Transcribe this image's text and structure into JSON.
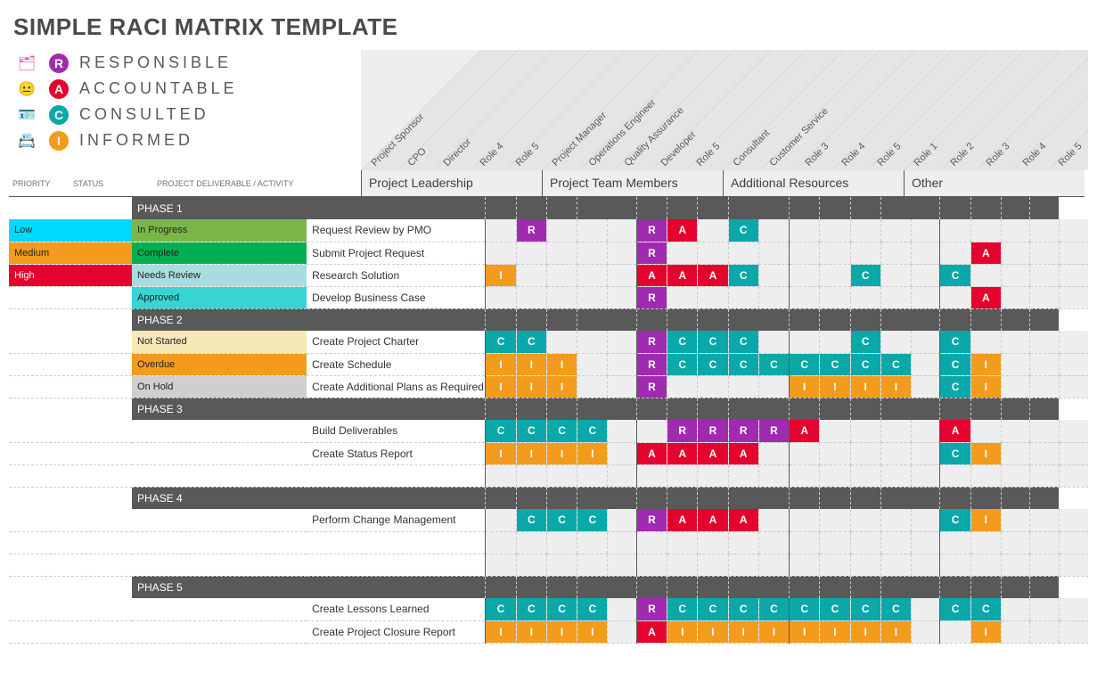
{
  "title": "SIMPLE RACI MATRIX TEMPLATE",
  "legend": [
    {
      "letter": "R",
      "label": "RESPONSIBLE",
      "color": "#a02bb0"
    },
    {
      "letter": "A",
      "label": "ACCOUNTABLE",
      "color": "#e4032e"
    },
    {
      "letter": "C",
      "label": "CONSULTED",
      "color": "#0aa8a8"
    },
    {
      "letter": "I",
      "label": "INFORMED",
      "color": "#f29b1d"
    }
  ],
  "legend_icons": [
    {
      "color": "#e84fa5",
      "glyph": "🗂"
    },
    {
      "color": "#f2a0c4",
      "glyph": "😐"
    },
    {
      "color": "#62d9d0",
      "glyph": "🪪"
    },
    {
      "color": "#f2b84b",
      "glyph": "📇"
    }
  ],
  "raci_colors": {
    "R": "#a02bb0",
    "A": "#e4032e",
    "C": "#0aa8a8",
    "I": "#f29b1d"
  },
  "column_headers": {
    "priority": "PRIORITY",
    "status": "STATUS",
    "deliverable": "PROJECT DELIVERABLE / ACTIVITY"
  },
  "priority_colors": {
    "Low": "#00d9ff",
    "Medium": "#f29b1d",
    "High": "#e4032e"
  },
  "status_colors": {
    "In Progress": "#7ab648",
    "Complete": "#00b050",
    "Needs Review": "#a8dde0",
    "Approved": "#38d4d4",
    "Not Started": "#f7e8b8",
    "Overdue": "#f29b1d",
    "On Hold": "#d0cece"
  },
  "groups": [
    {
      "name": "Project Leadership",
      "roles": [
        "Project Sponsor",
        "CPO",
        "Director",
        "Role 4",
        "Role 5"
      ]
    },
    {
      "name": "Project Team Members",
      "roles": [
        "Project Manager",
        "Operations Engineer",
        "Quality Assurance",
        "Developer",
        "Role 5"
      ]
    },
    {
      "name": "Additional Resources",
      "roles": [
        "Consultant",
        "Customer Service",
        "Role 3",
        "Role 4",
        "Role 5"
      ]
    },
    {
      "name": "Other",
      "roles": [
        "Role 1",
        "Role 2",
        "Role 3",
        "Role 4",
        "Role 5"
      ]
    }
  ],
  "sections": [
    {
      "name": "PHASE 1",
      "rows": [
        {
          "priority": "Low",
          "status": "In Progress",
          "activity": "Request Review by PMO",
          "cells": [
            "",
            "R",
            "",
            "",
            "",
            "R",
            "A",
            "",
            "C",
            "",
            "",
            "",
            "",
            "",
            "",
            "",
            "",
            "",
            "",
            ""
          ]
        },
        {
          "priority": "Medium",
          "status": "Complete",
          "activity": "Submit Project Request",
          "cells": [
            "",
            "",
            "",
            "",
            "",
            "R",
            "",
            "",
            "",
            "",
            "",
            "",
            "",
            "",
            "",
            "",
            "A",
            "",
            "",
            ""
          ]
        },
        {
          "priority": "High",
          "status": "Needs Review",
          "activity": "Research Solution",
          "cells": [
            "I",
            "",
            "",
            "",
            "",
            "A",
            "A",
            "A",
            "C",
            "",
            "",
            "",
            "C",
            "",
            "",
            "C",
            "",
            "",
            "",
            ""
          ]
        },
        {
          "priority": "",
          "status": "Approved",
          "activity": "Develop Business Case",
          "cells": [
            "",
            "",
            "",
            "",
            "",
            "R",
            "",
            "",
            "",
            "",
            "",
            "",
            "",
            "",
            "",
            "",
            "A",
            "",
            "",
            ""
          ]
        }
      ]
    },
    {
      "name": "PHASE 2",
      "rows": [
        {
          "priority": "",
          "status": "Not Started",
          "activity": "Create Project Charter",
          "cells": [
            "C",
            "C",
            "",
            "",
            "",
            "R",
            "C",
            "C",
            "C",
            "",
            "",
            "",
            "C",
            "",
            "",
            "C",
            "",
            "",
            "",
            ""
          ]
        },
        {
          "priority": "",
          "status": "Overdue",
          "activity": "Create Schedule",
          "cells": [
            "I",
            "I",
            "I",
            "",
            "",
            "R",
            "C",
            "C",
            "C",
            "C",
            "C",
            "C",
            "C",
            "C",
            "",
            "C",
            "I",
            "",
            "",
            ""
          ]
        },
        {
          "priority": "",
          "status": "On Hold",
          "activity": "Create Additional Plans as Required",
          "cells": [
            "I",
            "I",
            "I",
            "",
            "",
            "R",
            "",
            "",
            "",
            "",
            "I",
            "I",
            "I",
            "I",
            "",
            "C",
            "I",
            "",
            "",
            ""
          ]
        }
      ]
    },
    {
      "name": "PHASE 3",
      "rows": [
        {
          "priority": "",
          "status": "",
          "activity": "Build Deliverables",
          "cells": [
            "C",
            "C",
            "C",
            "C",
            "",
            "",
            "R",
            "R",
            "R",
            "R",
            "A",
            "",
            "",
            "",
            "",
            "A",
            "",
            "",
            "",
            ""
          ]
        },
        {
          "priority": "",
          "status": "",
          "activity": "Create Status Report",
          "cells": [
            "I",
            "I",
            "I",
            "I",
            "",
            "A",
            "A",
            "A",
            "A",
            "",
            "",
            "",
            "",
            "",
            "",
            "C",
            "I",
            "",
            "",
            ""
          ]
        },
        {
          "blank": true
        }
      ]
    },
    {
      "name": "PHASE 4",
      "rows": [
        {
          "priority": "",
          "status": "",
          "activity": "Perform Change Management",
          "cells": [
            "",
            "C",
            "C",
            "C",
            "",
            "R",
            "A",
            "A",
            "A",
            "",
            "",
            "",
            "",
            "",
            "",
            "C",
            "I",
            "",
            "",
            ""
          ]
        },
        {
          "blank": true
        },
        {
          "blank": true
        }
      ]
    },
    {
      "name": "PHASE 5",
      "rows": [
        {
          "priority": "",
          "status": "",
          "activity": "Create Lessons Learned",
          "cells": [
            "C",
            "C",
            "C",
            "C",
            "",
            "R",
            "C",
            "C",
            "C",
            "C",
            "C",
            "C",
            "C",
            "C",
            "",
            "C",
            "C",
            "",
            "",
            ""
          ]
        },
        {
          "priority": "",
          "status": "",
          "activity": "Create Project Closure Report",
          "cells": [
            "I",
            "I",
            "I",
            "I",
            "",
            "A",
            "I",
            "I",
            "I",
            "I",
            "I",
            "I",
            "I",
            "I",
            "",
            "",
            "I",
            "",
            "",
            ""
          ]
        }
      ]
    }
  ]
}
